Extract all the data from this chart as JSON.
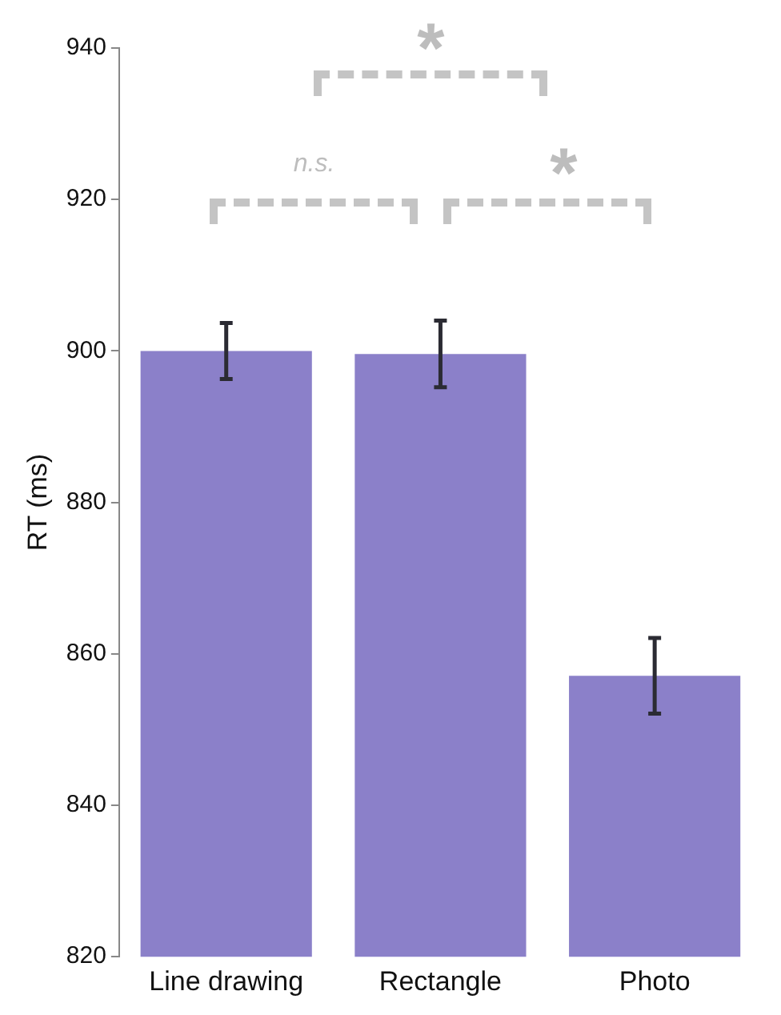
{
  "chart_data": {
    "type": "bar",
    "ylabel": "RT (ms)",
    "categories": [
      "Line drawing",
      "Rectangle",
      "Photo"
    ],
    "values": [
      900,
      899.6,
      857.1
    ],
    "color": "#8b80c9",
    "errors": [
      3.7,
      4.4,
      5
    ],
    "ylim": [
      820,
      940
    ],
    "yticks": [
      820,
      840,
      860,
      880,
      900,
      920,
      940
    ],
    "grid": false,
    "legend": false,
    "annotations": [
      "n.s.",
      "*",
      "*"
    ]
  }
}
